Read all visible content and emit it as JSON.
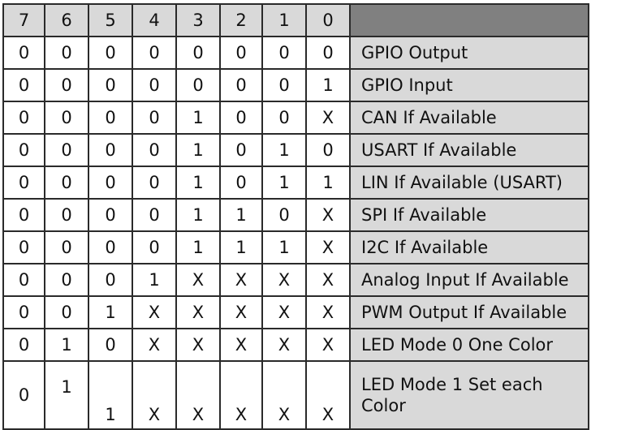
{
  "headers": [
    "7",
    "6",
    "5",
    "4",
    "3",
    "2",
    "1",
    "0"
  ],
  "rows": [
    {
      "bits": [
        "0",
        "0",
        "0",
        "0",
        "0",
        "0",
        "0",
        "0"
      ],
      "label": "GPIO Output"
    },
    {
      "bits": [
        "0",
        "0",
        "0",
        "0",
        "0",
        "0",
        "0",
        "1"
      ],
      "label": "GPIO Input"
    },
    {
      "bits": [
        "0",
        "0",
        "0",
        "0",
        "1",
        "0",
        "0",
        "X"
      ],
      "label": "CAN If Available"
    },
    {
      "bits": [
        "0",
        "0",
        "0",
        "0",
        "1",
        "0",
        "1",
        "0"
      ],
      "label": "USART If Available"
    },
    {
      "bits": [
        "0",
        "0",
        "0",
        "0",
        "1",
        "0",
        "1",
        "1"
      ],
      "label": "LIN If Available (USART)"
    },
    {
      "bits": [
        "0",
        "0",
        "0",
        "0",
        "1",
        "1",
        "0",
        "X"
      ],
      "label": "SPI If Available"
    },
    {
      "bits": [
        "0",
        "0",
        "0",
        "0",
        "1",
        "1",
        "1",
        "X"
      ],
      "label": "I2C If Available"
    },
    {
      "bits": [
        "0",
        "0",
        "0",
        "1",
        "X",
        "X",
        "X",
        "X"
      ],
      "label": "Analog Input If Available"
    },
    {
      "bits": [
        "0",
        "0",
        "1",
        "X",
        "X",
        "X",
        "X",
        "X"
      ],
      "label": "PWM Output If Available"
    },
    {
      "bits": [
        "0",
        "1",
        "0",
        "X",
        "X",
        "X",
        "X",
        "X"
      ],
      "label": "LED Mode 0 One Color"
    },
    {
      "bits": [
        "0",
        "1",
        "1",
        "X",
        "X",
        "X",
        "X",
        "X"
      ],
      "label_line1": "LED Mode 1 Set each",
      "label_line2": "Color"
    }
  ],
  "colors": {
    "header_bg": "#d9d9d9",
    "header_blank_bg": "#808080",
    "label_bg": "#d9d9d9",
    "border": "#2a2a2a"
  }
}
